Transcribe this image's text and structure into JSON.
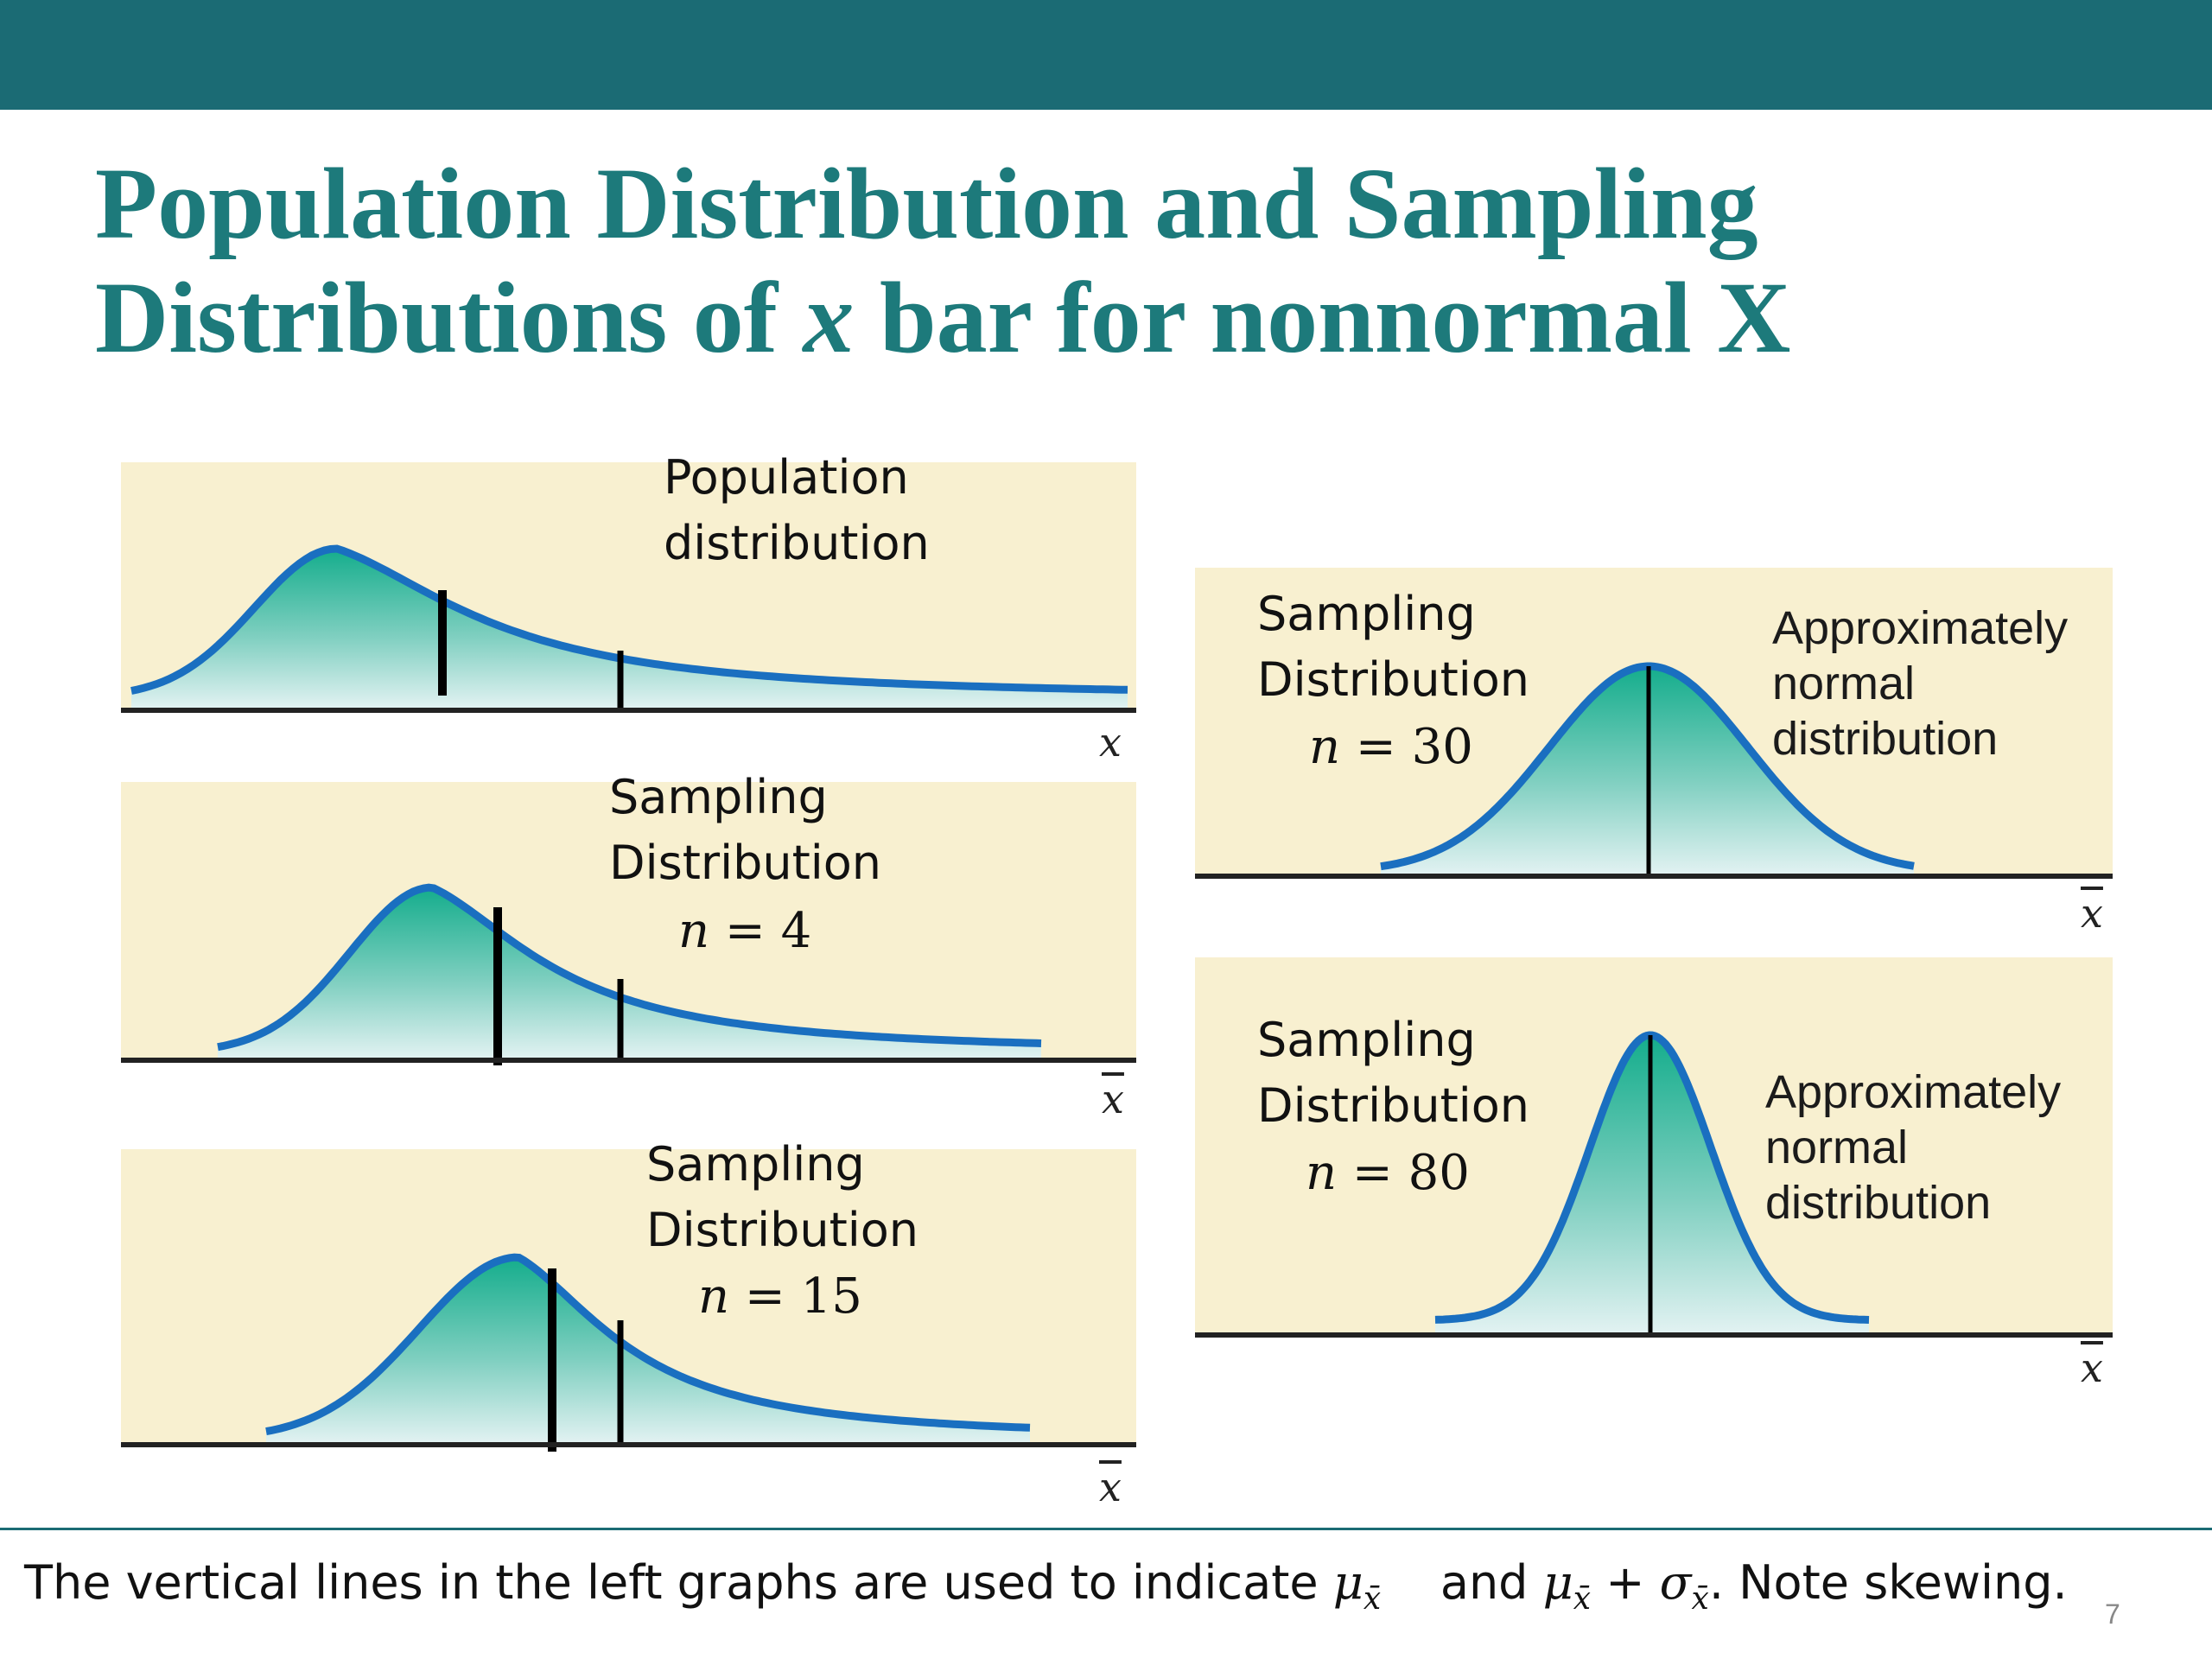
{
  "title": {
    "line1": "Population Distribution and Sampling",
    "line2_pre": "Distributions of ",
    "line2_var": "x",
    "line2_post": " bar for nonnormal X"
  },
  "panels": {
    "population": {
      "label_line1": "Population",
      "label_line2": "distribution",
      "axis": "x"
    },
    "n4": {
      "label_line1": "Sampling",
      "label_line2": "Distribution",
      "n_var": "n",
      "n_eq": " = 4",
      "axis": "x"
    },
    "n15": {
      "label_line1": "Sampling",
      "label_line2": "Distribution",
      "n_var": "n",
      "n_eq": " = 15",
      "axis": "x"
    },
    "n30": {
      "label_line1": "Sampling",
      "label_line2": "Distribution",
      "n_var": "n",
      "n_eq": " = 30",
      "approx": "Approximately\nnormal\ndistribution",
      "axis": "x"
    },
    "n80": {
      "label_line1": "Sampling",
      "label_line2": "Distribution",
      "n_var": "n",
      "n_eq": " = 80",
      "approx": "Approximately\nnormal\ndistribution",
      "axis": "x"
    }
  },
  "footnote": {
    "pre": "The vertical lines in the left graphs are used to indicate ",
    "mu": "μ",
    "sub1": "x̄",
    "and": "    and ",
    "mu2": "μ",
    "sub2": "x̄",
    "plus": " + ",
    "sigma": "σ",
    "sub3": "x̄",
    "post": ". Note skewing."
  },
  "page_number": "7",
  "colors": {
    "header_bar": "#1b6b74",
    "title": "#1d7a7b",
    "panel_bg": "#f8f0d0",
    "curve": "#1a6fc0",
    "fill_top": "#1aaf8f",
    "fill_bottom": "#d8eff0"
  }
}
